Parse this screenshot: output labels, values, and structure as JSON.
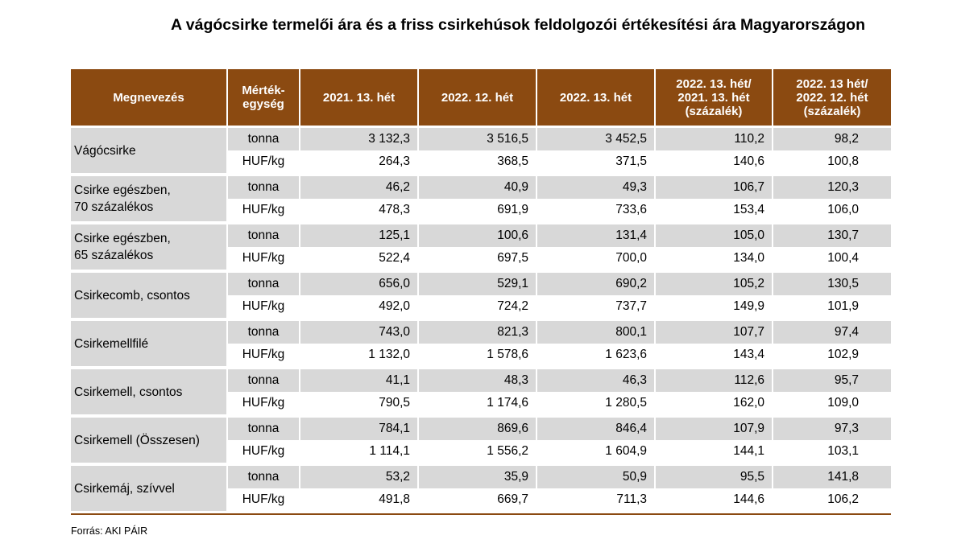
{
  "title": "A vágócsirke termelői ára és a friss csirkehúsok feldolgozói értékesítési ára Magyarországon",
  "headers": [
    "Megnevezés",
    "Mérték-\negység",
    "2021. 13. hét",
    "2022. 12. hét",
    "2022. 13. hét",
    "2022. 13. hét/\n2021. 13. hét\n(százalék)",
    "2022. 13 hét/\n2022. 12. hét\n(százalék)"
  ],
  "rows": [
    {
      "name": "Vágócsirke",
      "unit1": "tonna",
      "vals1": [
        "3 132,3",
        "3 516,5",
        "3 452,5",
        "110,2",
        "98,2"
      ],
      "unit2": "HUF/kg",
      "vals2": [
        "264,3",
        "368,5",
        "371,5",
        "140,6",
        "100,8"
      ]
    },
    {
      "name": "Csirke egészben,\n70 százalékos",
      "unit1": "tonna",
      "vals1": [
        "46,2",
        "40,9",
        "49,3",
        "106,7",
        "120,3"
      ],
      "unit2": "HUF/kg",
      "vals2": [
        "478,3",
        "691,9",
        "733,6",
        "153,4",
        "106,0"
      ]
    },
    {
      "name": "Csirke egészben,\n65 százalékos",
      "unit1": "tonna",
      "vals1": [
        "125,1",
        "100,6",
        "131,4",
        "105,0",
        "130,7"
      ],
      "unit2": "HUF/kg",
      "vals2": [
        "522,4",
        "697,5",
        "700,0",
        "134,0",
        "100,4"
      ]
    },
    {
      "name": "Csirkecomb, csontos",
      "unit1": "tonna",
      "vals1": [
        "656,0",
        "529,1",
        "690,2",
        "105,2",
        "130,5"
      ],
      "unit2": "HUF/kg",
      "vals2": [
        "492,0",
        "724,2",
        "737,7",
        "149,9",
        "101,9"
      ]
    },
    {
      "name": "Csirkemellfilé",
      "unit1": "tonna",
      "vals1": [
        "743,0",
        "821,3",
        "800,1",
        "107,7",
        "97,4"
      ],
      "unit2": "HUF/kg",
      "vals2": [
        "1 132,0",
        "1 578,6",
        "1 623,6",
        "143,4",
        "102,9"
      ]
    },
    {
      "name": "Csirkemell, csontos",
      "unit1": "tonna",
      "vals1": [
        "41,1",
        "48,3",
        "46,3",
        "112,6",
        "95,7"
      ],
      "unit2": "HUF/kg",
      "vals2": [
        "790,5",
        "1 174,6",
        "1 280,5",
        "162,0",
        "109,0"
      ]
    },
    {
      "name": "Csirkemell (Összesen)",
      "unit1": "tonna",
      "vals1": [
        "784,1",
        "869,6",
        "846,4",
        "107,9",
        "97,3"
      ],
      "unit2": "HUF/kg",
      "vals2": [
        "1 114,1",
        "1 556,2",
        "1 604,9",
        "144,1",
        "103,1"
      ]
    },
    {
      "name": "Csirkemáj, szívvel",
      "unit1": "tonna",
      "vals1": [
        "53,2",
        "35,9",
        "50,9",
        "95,5",
        "141,8"
      ],
      "unit2": "HUF/kg",
      "vals2": [
        "491,8",
        "669,7",
        "711,3",
        "144,6",
        "106,2"
      ]
    }
  ],
  "source": "Forrás: AKI PÁIR",
  "colors": {
    "header_bg": "#8b4a11",
    "row_shade": "#d8d8d8"
  }
}
